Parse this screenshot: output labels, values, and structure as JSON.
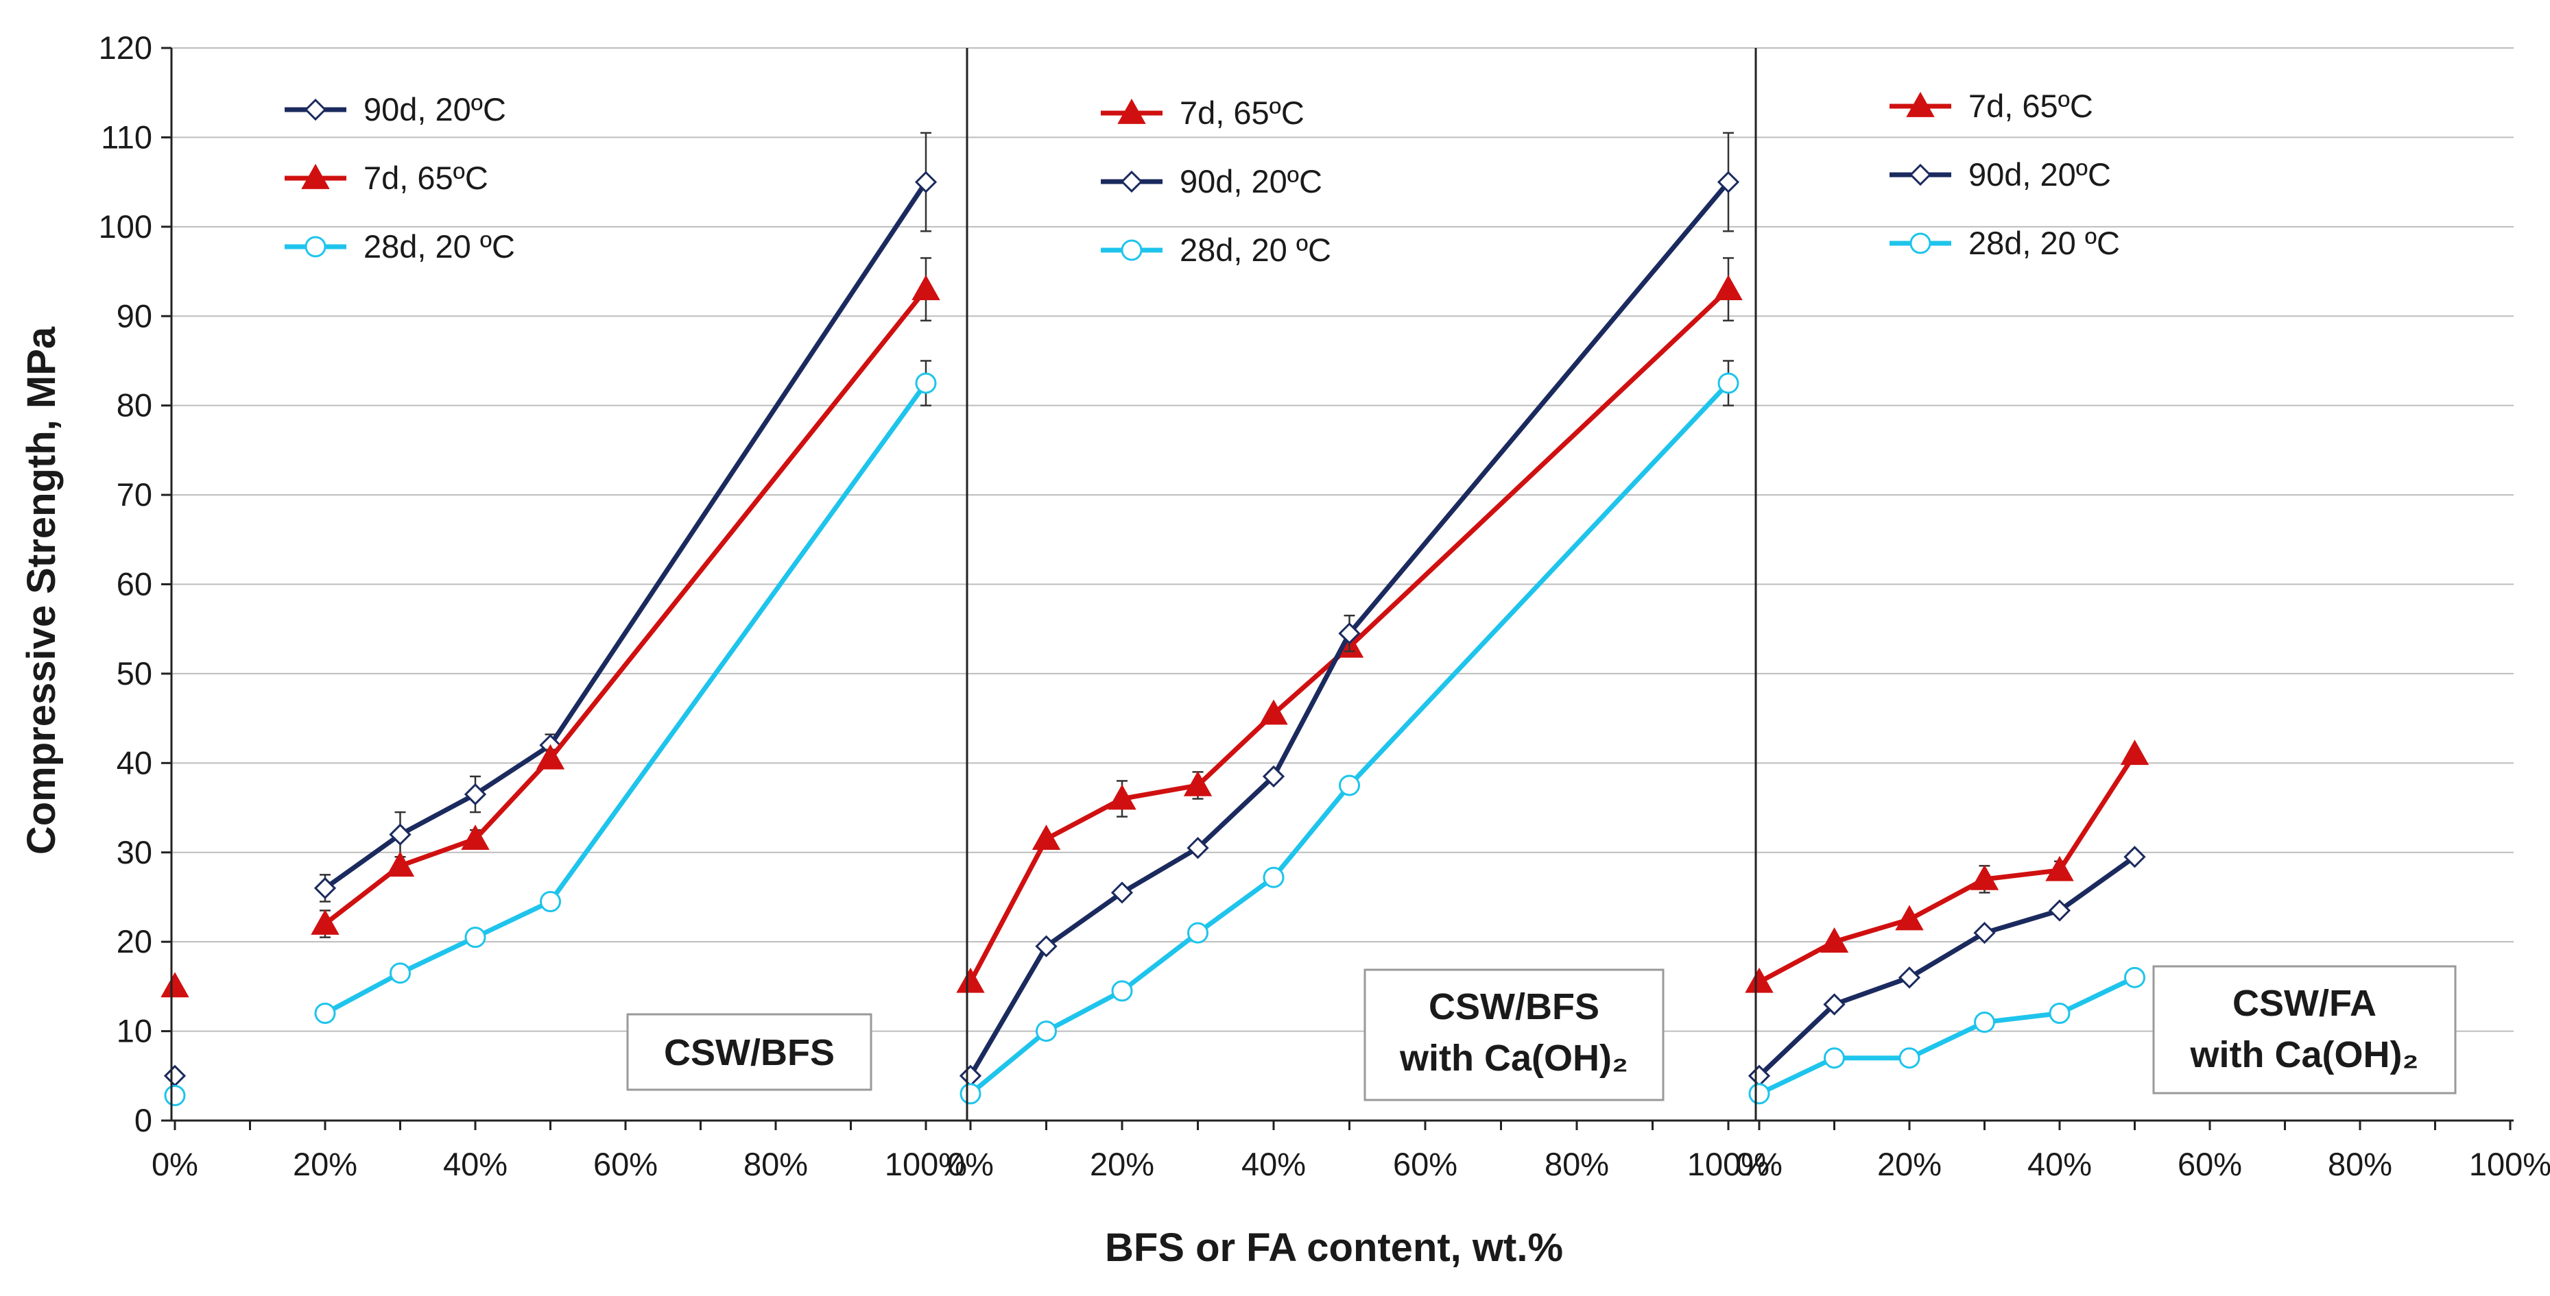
{
  "chart_data": {
    "type": "line",
    "ylabel": "Compressive Strength, MPa",
    "xlabel": "BFS or FA content, wt.%",
    "ylim": [
      0,
      120
    ],
    "yticks": [
      "0",
      "10",
      "20",
      "30",
      "40",
      "50",
      "60",
      "70",
      "80",
      "90",
      "100",
      "110",
      "120"
    ],
    "xticks": [
      "0%",
      "20%",
      "40%",
      "60%",
      "80%",
      "100%"
    ],
    "series_styles": {
      "90d, 20ºC": {
        "color": "#1b2a5e",
        "marker": "diamond"
      },
      "7d, 65ºC": {
        "color": "#d01010",
        "marker": "triangle"
      },
      "28d, 20 ºC": {
        "color": "#1ec4ec",
        "marker": "circle"
      }
    },
    "panels": [
      {
        "label_lines": [
          "CSW/BFS"
        ],
        "legend": [
          "90d, 20ºC",
          "7d, 65ºC",
          "28d, 20 ºC"
        ],
        "series": [
          {
            "name": "90d, 20ºC",
            "x": [
              0,
              20,
              30,
              40,
              50,
              100
            ],
            "y": [
              5,
              26,
              32,
              36.5,
              42,
              105
            ],
            "err": [
              0,
              1.5,
              2.5,
              2,
              1.2,
              5.5
            ],
            "connect_from": 1
          },
          {
            "name": "7d, 65ºC",
            "x": [
              0,
              20,
              30,
              40,
              50,
              100
            ],
            "y": [
              15,
              22,
              28.5,
              31.5,
              40.5,
              93
            ],
            "err": [
              0,
              1.5,
              1,
              1,
              1,
              3.5
            ],
            "connect_from": 1
          },
          {
            "name": "28d, 20 ºC",
            "x": [
              0,
              20,
              30,
              40,
              50,
              100
            ],
            "y": [
              2.8,
              12,
              16.5,
              20.5,
              24.5,
              82.5
            ],
            "err": [
              0,
              0,
              0,
              0,
              0,
              2.5
            ],
            "connect_from": 1
          }
        ]
      },
      {
        "label_lines": [
          "CSW/BFS",
          "with Ca(OH)₂"
        ],
        "legend": [
          "7d, 65ºC",
          "90d, 20ºC",
          "28d, 20 ºC"
        ],
        "series": [
          {
            "name": "7d, 65ºC",
            "x": [
              0,
              10,
              20,
              30,
              40,
              50,
              100
            ],
            "y": [
              15.5,
              31.5,
              36,
              37.5,
              45.5,
              53,
              93
            ],
            "err": [
              0,
              0,
              2,
              1.5,
              0,
              0,
              3.5
            ],
            "connect_from": 0
          },
          {
            "name": "90d, 20ºC",
            "x": [
              0,
              10,
              20,
              30,
              40,
              50,
              100
            ],
            "y": [
              5,
              19.5,
              25.5,
              30.5,
              38.5,
              54.5,
              105
            ],
            "err": [
              0,
              0,
              0,
              0,
              0,
              2,
              5.5
            ],
            "connect_from": 0
          },
          {
            "name": "28d, 20 ºC",
            "x": [
              0,
              10,
              20,
              30,
              40,
              50,
              100
            ],
            "y": [
              3,
              10,
              14.5,
              21,
              27.2,
              37.5,
              82.5
            ],
            "err": [
              0,
              0,
              0,
              0,
              0,
              0,
              2.5
            ],
            "connect_from": 0
          }
        ]
      },
      {
        "label_lines": [
          "CSW/FA",
          "with Ca(OH)₂"
        ],
        "legend": [
          "7d, 65ºC",
          "90d, 20ºC",
          "28d, 20 ºC"
        ],
        "series": [
          {
            "name": "7d, 65ºC",
            "x": [
              0,
              10,
              20,
              30,
              40,
              50
            ],
            "y": [
              15.5,
              20,
              22.5,
              27,
              28,
              41
            ],
            "err": [
              0,
              0,
              0,
              1.5,
              1,
              0
            ],
            "connect_from": 0
          },
          {
            "name": "90d, 20ºC",
            "x": [
              0,
              10,
              20,
              30,
              40,
              50
            ],
            "y": [
              5,
              13,
              16,
              21,
              23.5,
              29.5
            ],
            "err": [
              0,
              0,
              0,
              0,
              0,
              0
            ],
            "connect_from": 0
          },
          {
            "name": "28d, 20 ºC",
            "x": [
              0,
              10,
              20,
              30,
              40,
              50
            ],
            "y": [
              3,
              7,
              7,
              11,
              12,
              16
            ],
            "err": [
              0,
              0,
              0,
              0,
              0,
              0
            ],
            "connect_from": 0
          }
        ]
      }
    ]
  }
}
